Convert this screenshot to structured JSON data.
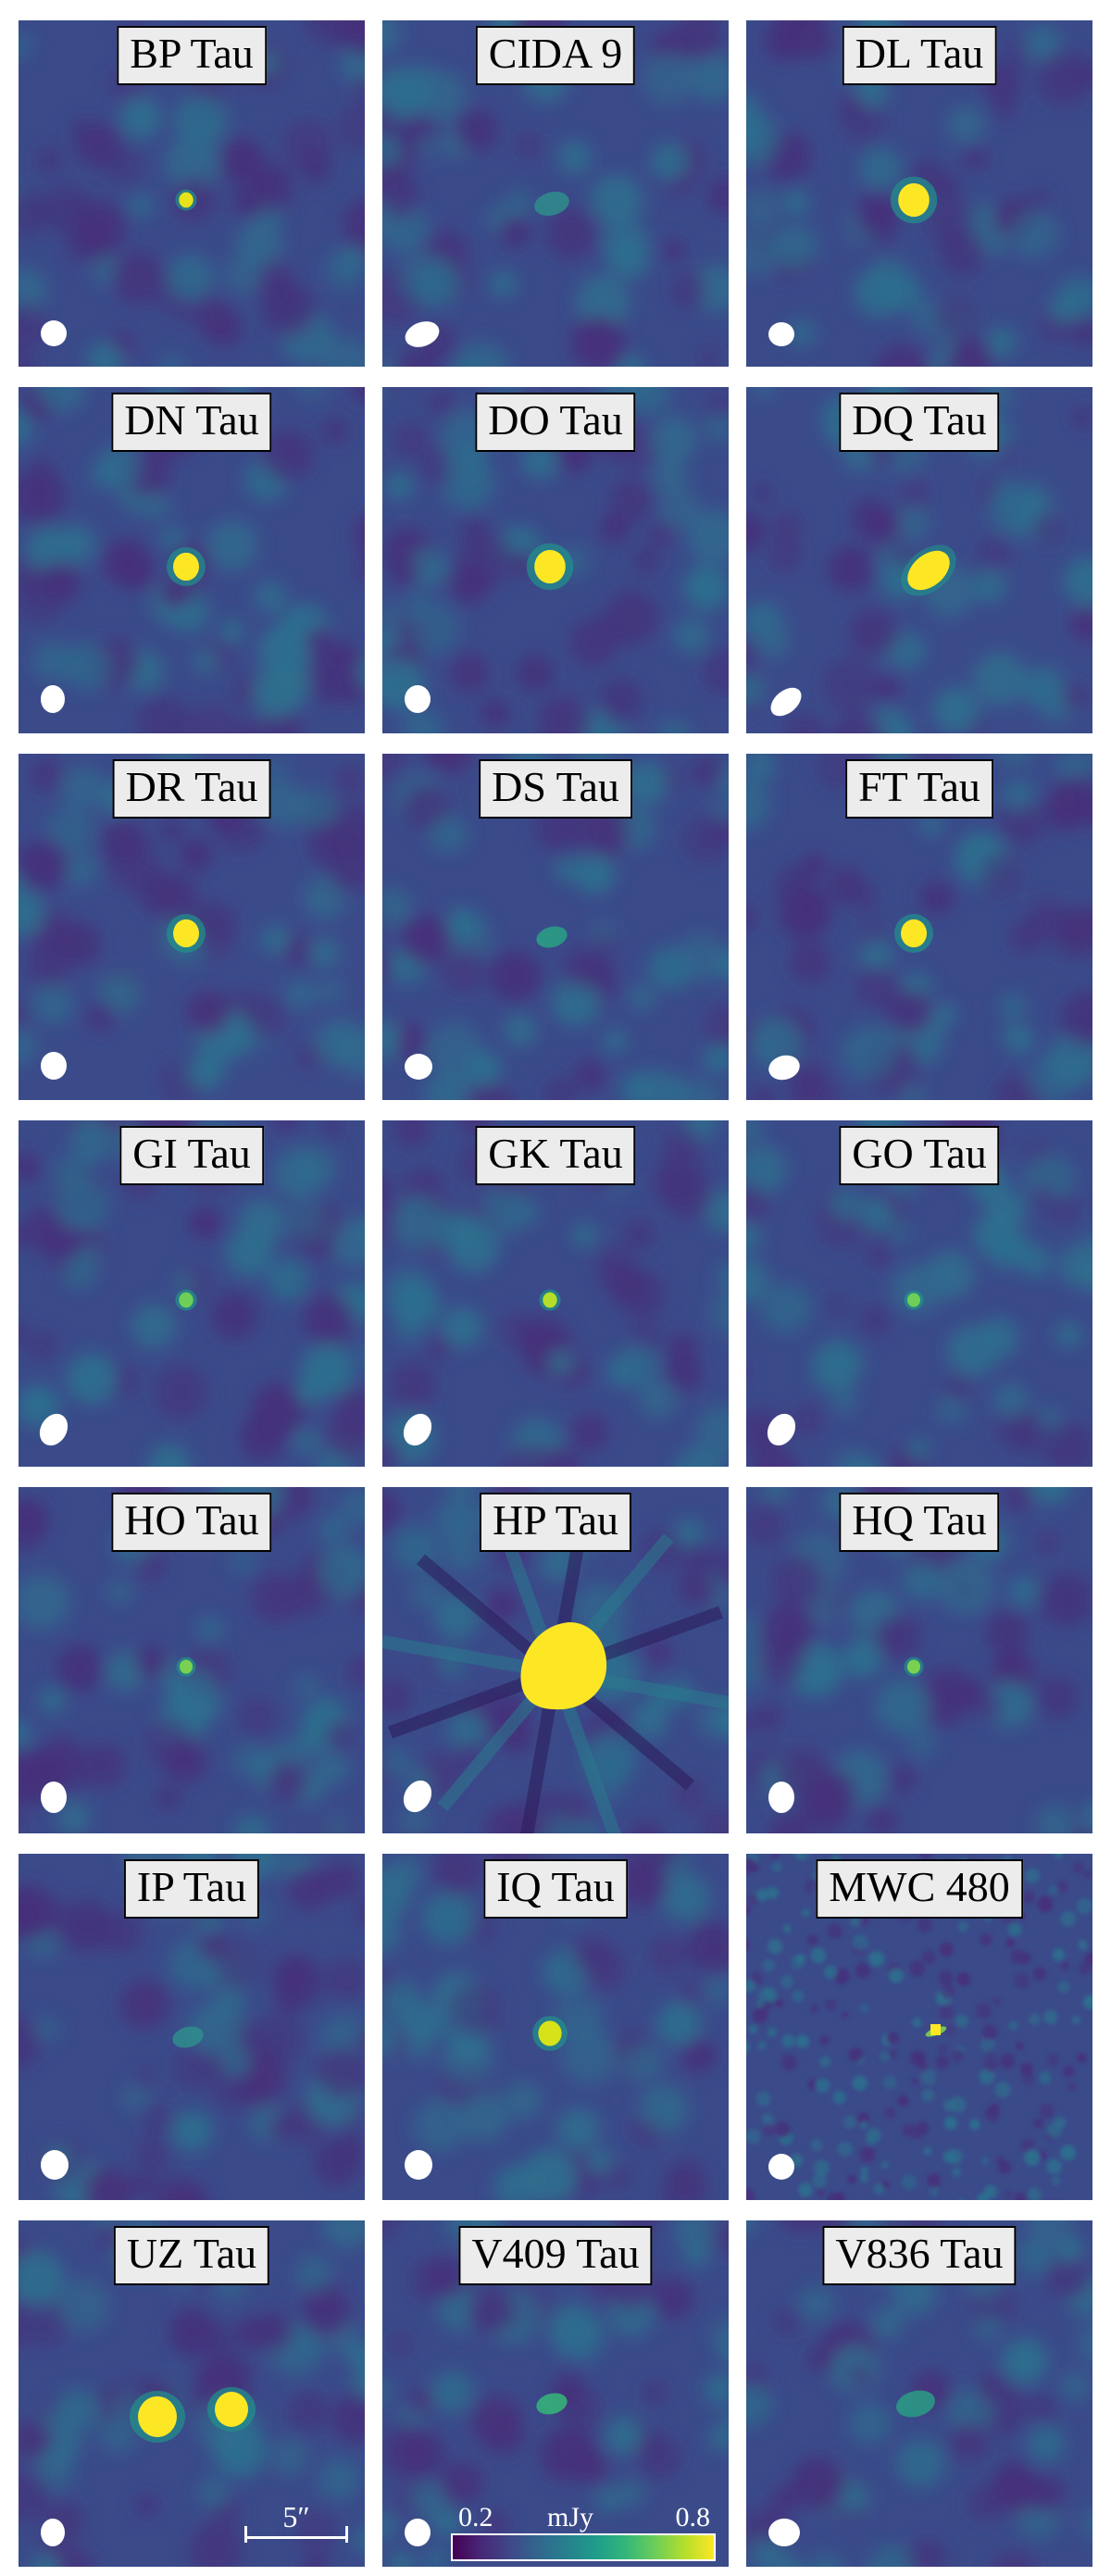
{
  "panels": [
    {
      "name": "BP Tau",
      "source": {
        "type": "dot",
        "size": 0.55,
        "color": "#e6e419"
      },
      "beam": {
        "w": 28,
        "h": 28,
        "rot": 0
      }
    },
    {
      "name": "CIDA 9",
      "source": {
        "type": "faint",
        "size": 0.6,
        "color": "#2f8d8c"
      },
      "beam": {
        "w": 38,
        "h": 26,
        "rot": -20
      }
    },
    {
      "name": "DL Tau",
      "source": {
        "type": "dot",
        "size": 1.2,
        "color": "#fde725"
      },
      "beam": {
        "w": 28,
        "h": 26,
        "rot": 0
      }
    },
    {
      "name": "DN Tau",
      "source": {
        "type": "dot",
        "size": 1.0,
        "color": "#fde725"
      },
      "beam": {
        "w": 26,
        "h": 30,
        "rot": 0
      }
    },
    {
      "name": "DO Tau",
      "source": {
        "type": "dot",
        "size": 1.2,
        "color": "#fde725"
      },
      "beam": {
        "w": 28,
        "h": 30,
        "rot": 0
      }
    },
    {
      "name": "DQ Tau",
      "source": {
        "type": "ellipse",
        "size": 1.6,
        "color": "#fde725"
      },
      "beam": {
        "w": 38,
        "h": 24,
        "rot": -40
      }
    },
    {
      "name": "DR Tau",
      "source": {
        "type": "dot",
        "size": 1.0,
        "color": "#fde725"
      },
      "beam": {
        "w": 28,
        "h": 30,
        "rot": 0
      }
    },
    {
      "name": "DS Tau",
      "source": {
        "type": "faint",
        "size": 0.5,
        "color": "#2aa184"
      },
      "beam": {
        "w": 30,
        "h": 28,
        "rot": 0
      }
    },
    {
      "name": "FT Tau",
      "source": {
        "type": "dot",
        "size": 1.0,
        "color": "#fde725"
      },
      "beam": {
        "w": 34,
        "h": 26,
        "rot": -15
      }
    },
    {
      "name": "GI Tau",
      "source": {
        "type": "dot",
        "size": 0.55,
        "color": "#6ece58"
      },
      "beam": {
        "w": 28,
        "h": 36,
        "rot": 30
      }
    },
    {
      "name": "GK Tau",
      "source": {
        "type": "dot",
        "size": 0.55,
        "color": "#b5de2b"
      },
      "beam": {
        "w": 28,
        "h": 36,
        "rot": 30
      }
    },
    {
      "name": "GO Tau",
      "source": {
        "type": "dot",
        "size": 0.5,
        "color": "#6ece58"
      },
      "beam": {
        "w": 28,
        "h": 36,
        "rot": 30
      }
    },
    {
      "name": "HO Tau",
      "source": {
        "type": "dot",
        "size": 0.5,
        "color": "#7ad151"
      },
      "beam": {
        "w": 28,
        "h": 34,
        "rot": 0
      }
    },
    {
      "name": "HP Tau",
      "source": {
        "type": "blob",
        "size": 2.6,
        "color": "#fde725"
      },
      "beam": {
        "w": 28,
        "h": 36,
        "rot": 30
      }
    },
    {
      "name": "HQ Tau",
      "source": {
        "type": "dot",
        "size": 0.5,
        "color": "#7ad151"
      },
      "beam": {
        "w": 28,
        "h": 34,
        "rot": 0
      }
    },
    {
      "name": "IP Tau",
      "source": {
        "type": "faint",
        "size": 0.5,
        "color": "#2f8d8c"
      },
      "beam": {
        "w": 30,
        "h": 32,
        "rot": 0
      }
    },
    {
      "name": "IQ Tau",
      "source": {
        "type": "dot",
        "size": 0.9,
        "color": "#d8e219"
      },
      "beam": {
        "w": 30,
        "h": 32,
        "rot": 0
      }
    },
    {
      "name": "MWC 480",
      "source": {
        "type": "point",
        "size": 0.4,
        "color": "#fde725"
      },
      "beam": {
        "w": 28,
        "h": 28,
        "rot": 0
      }
    },
    {
      "name": "UZ Tau",
      "source": {
        "type": "double",
        "size": 1.1,
        "color": "#fde725"
      },
      "beam": {
        "w": 26,
        "h": 30,
        "rot": 0
      }
    },
    {
      "name": "V409 Tau",
      "source": {
        "type": "faint",
        "size": 0.5,
        "color": "#35b779"
      },
      "beam": {
        "w": 28,
        "h": 30,
        "rot": 0
      }
    },
    {
      "name": "V836 Tau",
      "source": {
        "type": "faint",
        "size": 0.7,
        "color": "#2a9c85"
      },
      "beam": {
        "w": 34,
        "h": 30,
        "rot": 0
      }
    }
  ],
  "scalebar": {
    "label": "5″"
  },
  "colorbar": {
    "min_label": "0.2",
    "unit": "mJy",
    "max_label": "0.8",
    "min": 0.2,
    "max": 0.8,
    "colormap": "viridis"
  },
  "colors": {
    "background": "#3b4b8a",
    "noise_dark": "#46307a",
    "noise_light": "#2d6f8e",
    "beam": "#ffffff"
  }
}
